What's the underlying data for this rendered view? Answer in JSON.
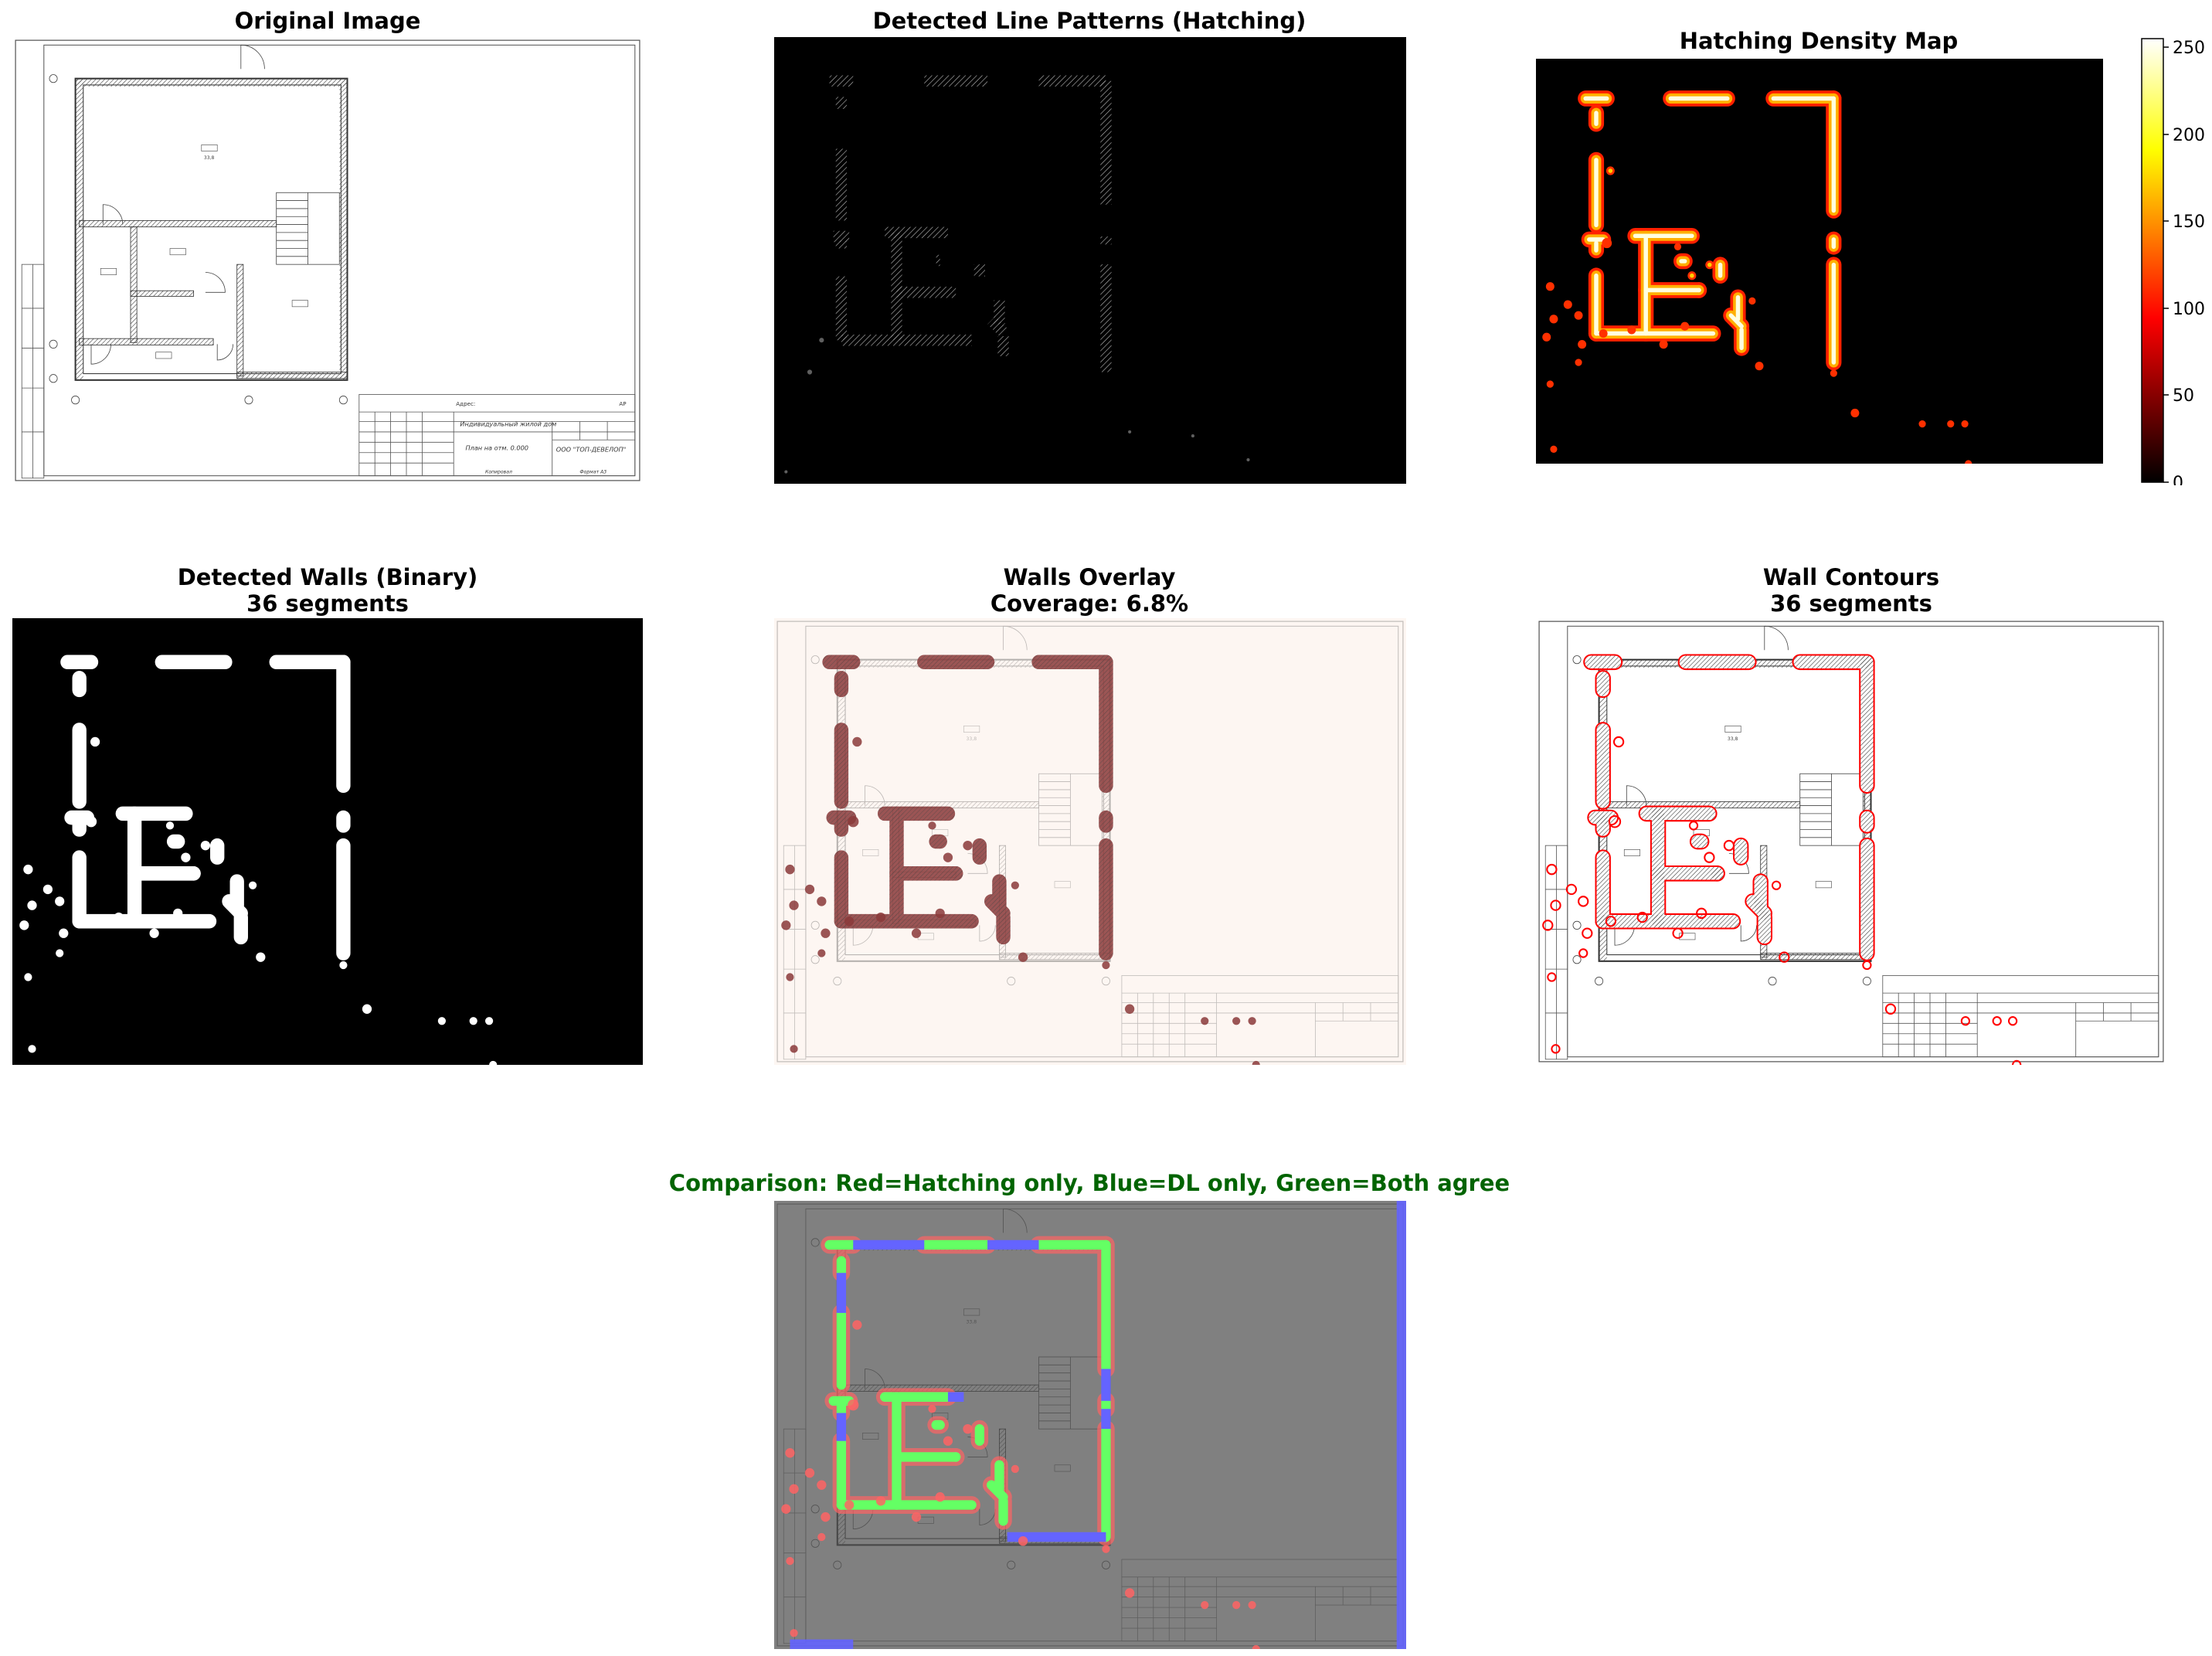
{
  "panels": {
    "original": {
      "title": "Original Image"
    },
    "hatching": {
      "title": "Detected Line Patterns (Hatching)"
    },
    "density": {
      "title": "Hatching Density Map",
      "colorbar": {
        "ticks": [
          "0",
          "50",
          "100",
          "150",
          "200",
          "250"
        ],
        "cmap": "hot",
        "range": [
          0,
          255
        ]
      }
    },
    "walls_binary": {
      "title_line1": "Detected Walls (Binary)",
      "title_line2": "36 segments"
    },
    "overlay": {
      "title_line1": "Walls Overlay",
      "title_line2": "Coverage: 6.8%"
    },
    "contours": {
      "title_line1": "Wall Contours",
      "title_line2": "36 segments"
    },
    "comparison": {
      "title": "Comparison: Red=Hatching only, Blue=DL only, Green=Both agree"
    }
  },
  "plan_labels": {
    "address": "Адрес:",
    "project": "Индивидуальный жилой дом",
    "plan": "План на отм. 0.000",
    "company": "ООО \"ТОП-ДЕВЕЛОП\"",
    "copied": "Копировал",
    "format": "Формат А3",
    "sheet": "АР"
  },
  "colors": {
    "title_green": "#006400",
    "overlay_wall": "#8b3a3a",
    "contour_red": "#ff0000",
    "cmp_gray": "#808080",
    "cmp_red": "#ff6464",
    "cmp_blue": "#6464ff",
    "cmp_green": "#64ff64"
  }
}
